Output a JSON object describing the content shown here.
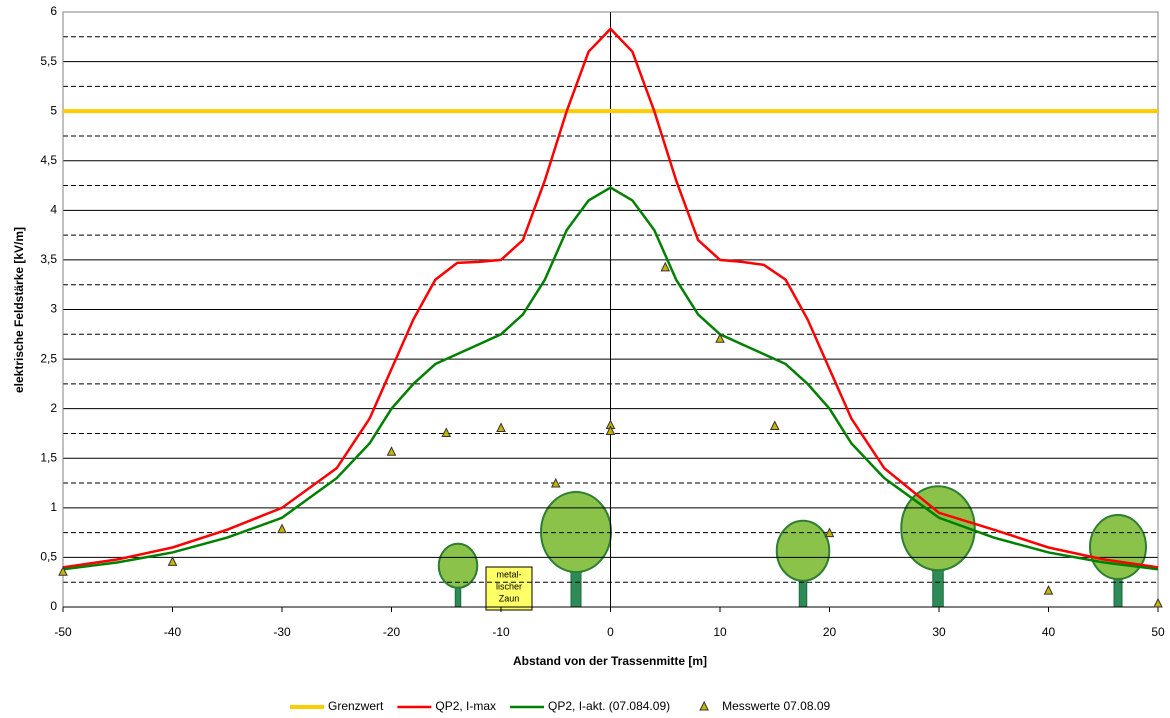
{
  "chart_data": {
    "type": "line",
    "xlabel": "Abstand von der Trassenmitte [m]",
    "ylabel": "elektrische Feldstärke [kV/m]",
    "xlim": [
      -50,
      50
    ],
    "ylim": [
      0,
      6
    ],
    "xticks": [
      -50,
      -40,
      -30,
      -20,
      -10,
      0,
      10,
      20,
      30,
      40,
      50
    ],
    "yticks": [
      0,
      {
        "value": 0.5,
        "label": "0,5"
      },
      1,
      {
        "value": 1.5,
        "label": "1,5"
      },
      2,
      {
        "value": 2.5,
        "label": "2,5"
      },
      3,
      {
        "value": 3.5,
        "label": "3,5"
      },
      4,
      {
        "value": 4.5,
        "label": "4,5"
      },
      5,
      {
        "value": 5.5,
        "label": "5,5"
      },
      6
    ],
    "minor_yticks": [
      0.25,
      0.75,
      1.25,
      1.75,
      2.25,
      2.75,
      3.25,
      3.75,
      4.25,
      4.75,
      5.25,
      5.75
    ],
    "grid": true,
    "annotation": [
      "metal-",
      "lischer",
      "Zaun"
    ],
    "series": [
      {
        "name": "Grenzwert",
        "color": "#ffcc00",
        "x": [
          -50,
          50
        ],
        "values": [
          5,
          5
        ]
      },
      {
        "name": "QP2, I-max",
        "color": "#ff0000",
        "x": [
          -50,
          -45,
          -40,
          -35,
          -30,
          -25,
          -22,
          -20,
          -18,
          -16,
          -14,
          -12,
          -10,
          -8,
          -6,
          -4,
          -2,
          0,
          2,
          4,
          6,
          8,
          10,
          12,
          14,
          16,
          18,
          20,
          22,
          25,
          30,
          35,
          40,
          45,
          50
        ],
        "values": [
          0.4,
          0.48,
          0.6,
          0.78,
          1.0,
          1.4,
          1.9,
          2.4,
          2.9,
          3.3,
          3.47,
          3.48,
          3.5,
          3.7,
          4.3,
          5.0,
          5.6,
          5.83,
          5.6,
          5.0,
          4.3,
          3.7,
          3.5,
          3.48,
          3.45,
          3.3,
          2.9,
          2.4,
          1.9,
          1.4,
          0.95,
          0.78,
          0.6,
          0.48,
          0.4
        ]
      },
      {
        "name": "QP2, I-akt. (07.084.09)",
        "color": "#008000",
        "x": [
          -50,
          -45,
          -40,
          -35,
          -30,
          -25,
          -22,
          -20,
          -18,
          -16,
          -14,
          -12,
          -10,
          -8,
          -6,
          -4,
          -2,
          0,
          2,
          4,
          6,
          8,
          10,
          12,
          14,
          16,
          18,
          20,
          22,
          25,
          30,
          35,
          40,
          45,
          50
        ],
        "values": [
          0.38,
          0.45,
          0.55,
          0.7,
          0.9,
          1.3,
          1.65,
          2.0,
          2.25,
          2.45,
          2.55,
          2.65,
          2.75,
          2.95,
          3.3,
          3.8,
          4.1,
          4.23,
          4.1,
          3.8,
          3.3,
          2.95,
          2.75,
          2.65,
          2.55,
          2.45,
          2.25,
          2.0,
          1.65,
          1.3,
          0.9,
          0.7,
          0.55,
          0.45,
          0.38
        ]
      },
      {
        "name": "Messwerte 07.08.09",
        "color": "#808000",
        "marker": "triangle",
        "x": [
          -50,
          -40,
          -30,
          -20,
          -15,
          -10,
          -5,
          0,
          0,
          5,
          10,
          15,
          20,
          40,
          50
        ],
        "values": [
          0.35,
          0.45,
          0.78,
          1.56,
          1.75,
          1.8,
          1.24,
          1.83,
          1.77,
          3.42,
          2.7,
          1.82,
          0.74,
          0.16,
          0.03
        ]
      }
    ]
  }
}
